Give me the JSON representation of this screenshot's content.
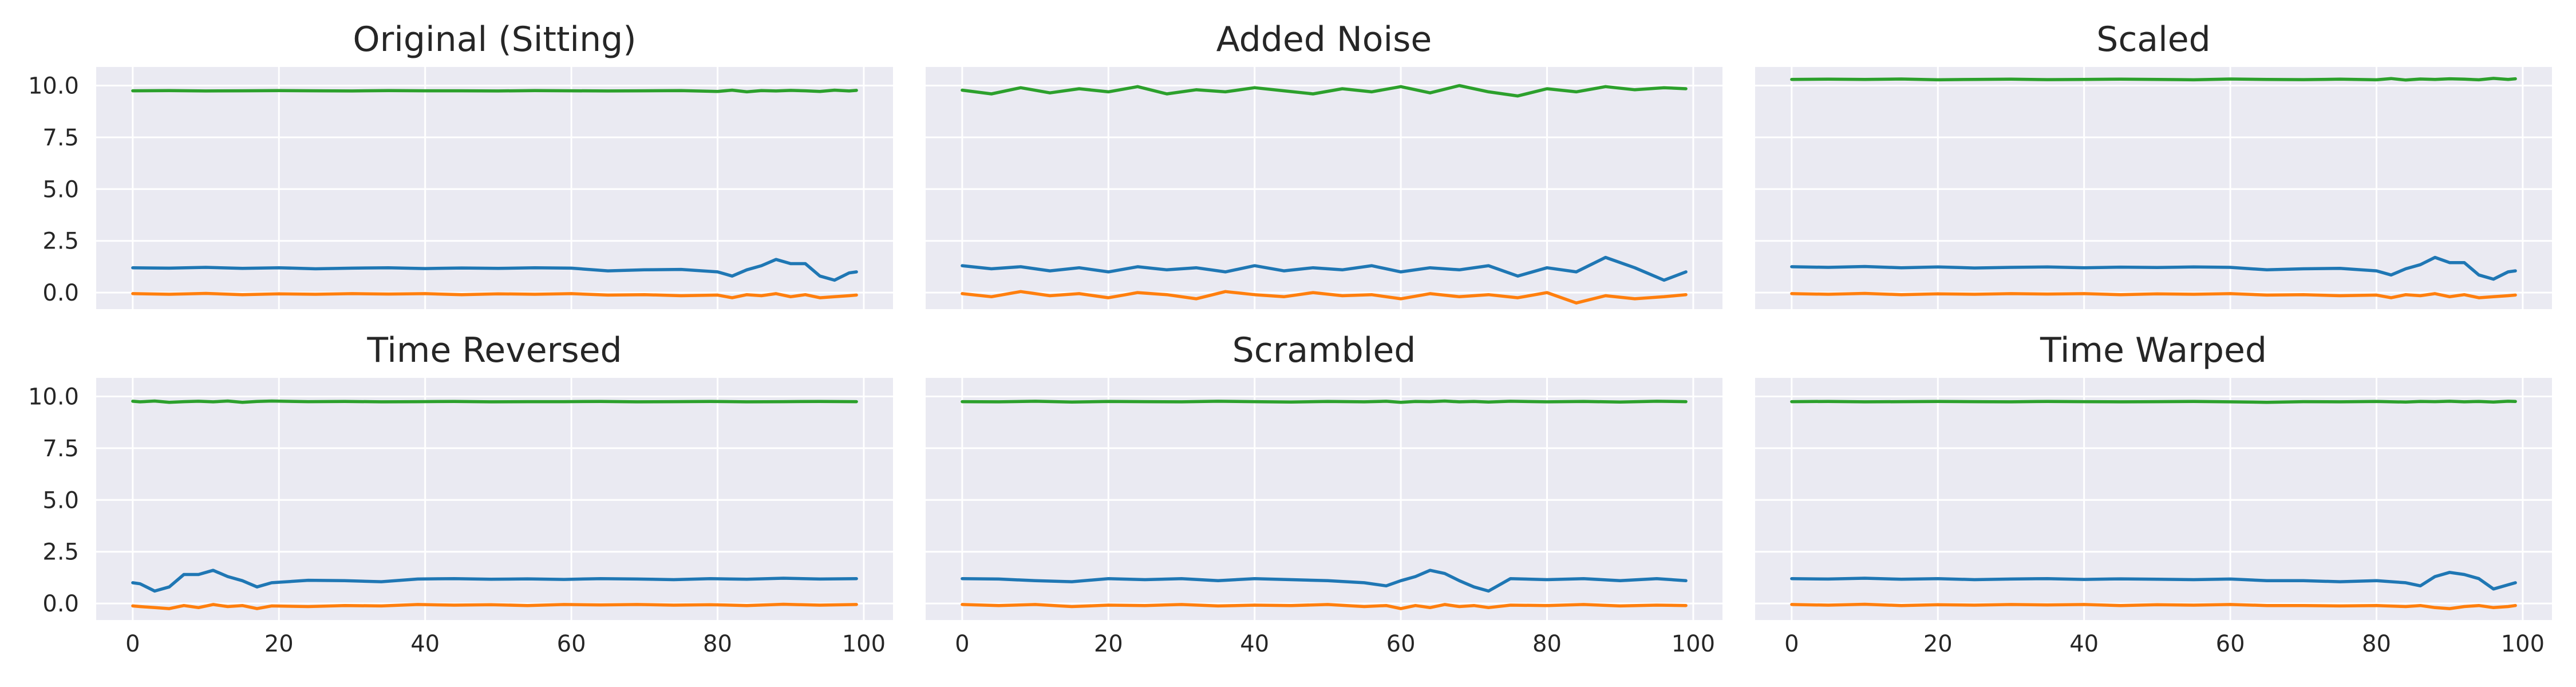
{
  "figure": {
    "colors": {
      "background": "#eaeaf2",
      "grid": "#ffffff",
      "series": [
        "#1f77b4",
        "#ff7f0e",
        "#2ca02c"
      ]
    }
  },
  "chart_data": [
    {
      "type": "line",
      "title": "Original (Sitting)",
      "xlabel": "",
      "ylabel": "",
      "xlim": [
        -5,
        104
      ],
      "ylim": [
        -0.8,
        10.9
      ],
      "xticks": [
        "0",
        "20",
        "40",
        "60",
        "80",
        "100"
      ],
      "yticks": [
        "0.0",
        "2.5",
        "5.0",
        "7.5",
        "10.0"
      ],
      "grid": true,
      "x": [
        0,
        5,
        10,
        15,
        20,
        25,
        30,
        35,
        40,
        45,
        50,
        55,
        60,
        65,
        70,
        75,
        80,
        82,
        84,
        86,
        88,
        90,
        92,
        94,
        96,
        98,
        99
      ],
      "series": [
        {
          "color": "#2ca02c",
          "values": [
            9.75,
            9.76,
            9.74,
            9.75,
            9.76,
            9.75,
            9.74,
            9.76,
            9.75,
            9.75,
            9.74,
            9.76,
            9.75,
            9.74,
            9.75,
            9.76,
            9.72,
            9.78,
            9.7,
            9.76,
            9.74,
            9.77,
            9.75,
            9.72,
            9.78,
            9.74,
            9.77
          ]
        },
        {
          "color": "#1f77b4",
          "values": [
            1.2,
            1.18,
            1.22,
            1.17,
            1.2,
            1.15,
            1.18,
            1.2,
            1.16,
            1.19,
            1.17,
            1.2,
            1.18,
            1.05,
            1.1,
            1.12,
            1.0,
            0.8,
            1.1,
            1.3,
            1.6,
            1.4,
            1.4,
            0.8,
            0.6,
            0.95,
            1.0
          ]
        },
        {
          "color": "#ff7f0e",
          "values": [
            -0.05,
            -0.08,
            -0.04,
            -0.1,
            -0.06,
            -0.08,
            -0.05,
            -0.07,
            -0.05,
            -0.1,
            -0.06,
            -0.08,
            -0.05,
            -0.12,
            -0.1,
            -0.15,
            -0.12,
            -0.25,
            -0.1,
            -0.15,
            -0.05,
            -0.2,
            -0.1,
            -0.25,
            -0.2,
            -0.15,
            -0.12
          ]
        }
      ]
    },
    {
      "type": "line",
      "title": "Added Noise",
      "xlabel": "",
      "ylabel": "",
      "xlim": [
        -5,
        104
      ],
      "ylim": [
        -0.8,
        10.9
      ],
      "xticks": [
        "0",
        "20",
        "40",
        "60",
        "80",
        "100"
      ],
      "yticks": [
        "0.0",
        "2.5",
        "5.0",
        "7.5",
        "10.0"
      ],
      "grid": true,
      "x": [
        0,
        4,
        8,
        12,
        16,
        20,
        24,
        28,
        32,
        36,
        40,
        44,
        48,
        52,
        56,
        60,
        64,
        68,
        72,
        76,
        80,
        84,
        88,
        92,
        96,
        99
      ],
      "series": [
        {
          "color": "#2ca02c",
          "values": [
            9.78,
            9.6,
            9.9,
            9.65,
            9.85,
            9.7,
            9.95,
            9.6,
            9.8,
            9.7,
            9.9,
            9.75,
            9.6,
            9.85,
            9.7,
            9.95,
            9.65,
            10.0,
            9.7,
            9.5,
            9.85,
            9.7,
            9.95,
            9.8,
            9.9,
            9.85
          ]
        },
        {
          "color": "#1f77b4",
          "values": [
            1.3,
            1.15,
            1.25,
            1.05,
            1.2,
            1.0,
            1.25,
            1.1,
            1.2,
            1.0,
            1.3,
            1.05,
            1.2,
            1.1,
            1.3,
            1.0,
            1.2,
            1.1,
            1.3,
            0.8,
            1.2,
            1.0,
            1.7,
            1.2,
            0.6,
            1.0
          ]
        },
        {
          "color": "#ff7f0e",
          "values": [
            -0.05,
            -0.2,
            0.05,
            -0.15,
            -0.05,
            -0.25,
            0.0,
            -0.1,
            -0.3,
            0.05,
            -0.1,
            -0.2,
            0.0,
            -0.15,
            -0.1,
            -0.3,
            -0.05,
            -0.2,
            -0.1,
            -0.25,
            0.0,
            -0.5,
            -0.15,
            -0.3,
            -0.2,
            -0.1
          ]
        }
      ]
    },
    {
      "type": "line",
      "title": "Scaled",
      "xlabel": "",
      "ylabel": "",
      "xlim": [
        -5,
        104
      ],
      "ylim": [
        -0.8,
        10.9
      ],
      "xticks": [
        "0",
        "20",
        "40",
        "60",
        "80",
        "100"
      ],
      "yticks": [
        "0.0",
        "2.5",
        "5.0",
        "7.5",
        "10.0"
      ],
      "grid": true,
      "x": [
        0,
        5,
        10,
        15,
        20,
        25,
        30,
        35,
        40,
        45,
        50,
        55,
        60,
        65,
        70,
        75,
        80,
        82,
        84,
        86,
        88,
        90,
        92,
        94,
        96,
        98,
        99
      ],
      "series": [
        {
          "color": "#2ca02c",
          "values": [
            10.3,
            10.31,
            10.3,
            10.32,
            10.28,
            10.3,
            10.31,
            10.29,
            10.3,
            10.31,
            10.3,
            10.28,
            10.32,
            10.3,
            10.29,
            10.31,
            10.28,
            10.34,
            10.27,
            10.32,
            10.3,
            10.33,
            10.31,
            10.28,
            10.35,
            10.3,
            10.33
          ]
        },
        {
          "color": "#1f77b4",
          "values": [
            1.25,
            1.22,
            1.26,
            1.2,
            1.24,
            1.19,
            1.22,
            1.24,
            1.2,
            1.23,
            1.21,
            1.24,
            1.22,
            1.1,
            1.15,
            1.17,
            1.05,
            0.85,
            1.15,
            1.35,
            1.7,
            1.45,
            1.45,
            0.85,
            0.65,
            1.0,
            1.05
          ]
        },
        {
          "color": "#ff7f0e",
          "values": [
            -0.05,
            -0.08,
            -0.04,
            -0.1,
            -0.06,
            -0.08,
            -0.05,
            -0.07,
            -0.05,
            -0.1,
            -0.06,
            -0.08,
            -0.05,
            -0.12,
            -0.1,
            -0.15,
            -0.12,
            -0.25,
            -0.1,
            -0.15,
            -0.05,
            -0.2,
            -0.1,
            -0.25,
            -0.2,
            -0.15,
            -0.12
          ]
        }
      ]
    },
    {
      "type": "line",
      "title": "Time Reversed",
      "xlabel": "",
      "ylabel": "",
      "xlim": [
        -5,
        104
      ],
      "ylim": [
        -0.8,
        10.9
      ],
      "xticks": [
        "0",
        "20",
        "40",
        "60",
        "80",
        "100"
      ],
      "yticks": [
        "0.0",
        "2.5",
        "5.0",
        "7.5",
        "10.0"
      ],
      "grid": true,
      "x": [
        0,
        1,
        3,
        5,
        7,
        9,
        11,
        13,
        15,
        17,
        19,
        24,
        29,
        34,
        39,
        44,
        49,
        54,
        59,
        64,
        69,
        74,
        79,
        84,
        89,
        94,
        99
      ],
      "series": [
        {
          "color": "#2ca02c",
          "values": [
            9.77,
            9.74,
            9.78,
            9.72,
            9.75,
            9.77,
            9.74,
            9.78,
            9.72,
            9.76,
            9.78,
            9.75,
            9.76,
            9.74,
            9.75,
            9.76,
            9.74,
            9.75,
            9.75,
            9.76,
            9.74,
            9.75,
            9.76,
            9.74,
            9.75,
            9.76,
            9.75
          ]
        },
        {
          "color": "#1f77b4",
          "values": [
            1.0,
            0.95,
            0.6,
            0.8,
            1.4,
            1.4,
            1.6,
            1.3,
            1.1,
            0.8,
            1.0,
            1.12,
            1.1,
            1.05,
            1.18,
            1.2,
            1.17,
            1.19,
            1.16,
            1.2,
            1.18,
            1.15,
            1.2,
            1.17,
            1.22,
            1.18,
            1.2
          ]
        },
        {
          "color": "#ff7f0e",
          "values": [
            -0.12,
            -0.15,
            -0.2,
            -0.25,
            -0.1,
            -0.2,
            -0.05,
            -0.15,
            -0.1,
            -0.25,
            -0.12,
            -0.15,
            -0.1,
            -0.12,
            -0.05,
            -0.08,
            -0.06,
            -0.1,
            -0.05,
            -0.07,
            -0.05,
            -0.08,
            -0.06,
            -0.1,
            -0.04,
            -0.08,
            -0.05
          ]
        }
      ]
    },
    {
      "type": "line",
      "title": "Scrambled",
      "xlabel": "",
      "ylabel": "",
      "xlim": [
        -5,
        104
      ],
      "ylim": [
        -0.8,
        10.9
      ],
      "xticks": [
        "0",
        "20",
        "40",
        "60",
        "80",
        "100"
      ],
      "yticks": [
        "0.0",
        "2.5",
        "5.0",
        "7.5",
        "10.0"
      ],
      "grid": true,
      "x": [
        0,
        5,
        10,
        15,
        20,
        25,
        30,
        35,
        40,
        45,
        50,
        55,
        58,
        60,
        62,
        64,
        66,
        68,
        70,
        72,
        75,
        80,
        85,
        90,
        95,
        99
      ],
      "series": [
        {
          "color": "#2ca02c",
          "values": [
            9.75,
            9.74,
            9.77,
            9.73,
            9.76,
            9.75,
            9.74,
            9.77,
            9.75,
            9.73,
            9.76,
            9.74,
            9.77,
            9.72,
            9.76,
            9.75,
            9.78,
            9.74,
            9.76,
            9.73,
            9.77,
            9.74,
            9.76,
            9.73,
            9.77,
            9.75
          ]
        },
        {
          "color": "#1f77b4",
          "values": [
            1.2,
            1.18,
            1.1,
            1.05,
            1.2,
            1.15,
            1.2,
            1.1,
            1.2,
            1.15,
            1.1,
            1.0,
            0.85,
            1.1,
            1.3,
            1.6,
            1.45,
            1.1,
            0.8,
            0.6,
            1.2,
            1.15,
            1.2,
            1.1,
            1.2,
            1.1
          ]
        },
        {
          "color": "#ff7f0e",
          "values": [
            -0.05,
            -0.1,
            -0.05,
            -0.15,
            -0.08,
            -0.1,
            -0.05,
            -0.12,
            -0.08,
            -0.1,
            -0.05,
            -0.15,
            -0.1,
            -0.25,
            -0.1,
            -0.2,
            -0.05,
            -0.15,
            -0.1,
            -0.2,
            -0.08,
            -0.1,
            -0.05,
            -0.12,
            -0.08,
            -0.1
          ]
        }
      ]
    },
    {
      "type": "line",
      "title": "Time Warped",
      "xlabel": "",
      "ylabel": "",
      "xlim": [
        -5,
        104
      ],
      "ylim": [
        -0.8,
        10.9
      ],
      "xticks": [
        "0",
        "20",
        "40",
        "60",
        "80",
        "100"
      ],
      "yticks": [
        "0.0",
        "2.5",
        "5.0",
        "7.5",
        "10.0"
      ],
      "grid": true,
      "x": [
        0,
        5,
        10,
        15,
        20,
        25,
        30,
        35,
        40,
        45,
        50,
        55,
        60,
        65,
        70,
        75,
        80,
        84,
        86,
        88,
        90,
        92,
        94,
        96,
        98,
        99
      ],
      "series": [
        {
          "color": "#2ca02c",
          "values": [
            9.75,
            9.76,
            9.74,
            9.75,
            9.76,
            9.75,
            9.74,
            9.76,
            9.75,
            9.74,
            9.75,
            9.76,
            9.74,
            9.72,
            9.75,
            9.74,
            9.76,
            9.73,
            9.76,
            9.75,
            9.77,
            9.74,
            9.76,
            9.73,
            9.77,
            9.76
          ]
        },
        {
          "color": "#1f77b4",
          "values": [
            1.2,
            1.18,
            1.22,
            1.17,
            1.2,
            1.15,
            1.18,
            1.2,
            1.16,
            1.19,
            1.17,
            1.15,
            1.18,
            1.1,
            1.1,
            1.05,
            1.1,
            1.0,
            0.85,
            1.3,
            1.5,
            1.4,
            1.2,
            0.7,
            0.9,
            1.0
          ]
        },
        {
          "color": "#ff7f0e",
          "values": [
            -0.05,
            -0.08,
            -0.04,
            -0.1,
            -0.06,
            -0.08,
            -0.05,
            -0.07,
            -0.05,
            -0.1,
            -0.06,
            -0.08,
            -0.05,
            -0.1,
            -0.1,
            -0.12,
            -0.1,
            -0.15,
            -0.1,
            -0.2,
            -0.25,
            -0.15,
            -0.1,
            -0.2,
            -0.15,
            -0.1
          ]
        }
      ]
    }
  ]
}
